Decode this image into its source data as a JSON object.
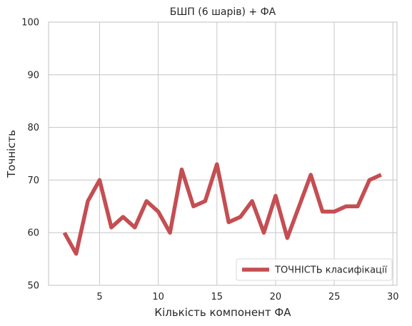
{
  "chart_data": {
    "type": "line",
    "title": "БШП (6 шарів) + ФА",
    "xlabel": "Кількість компонент ФА",
    "ylabel": "Точність",
    "xlim": [
      0.65,
      30.35
    ],
    "ylim": [
      50,
      100
    ],
    "xticks": [
      5,
      10,
      15,
      20,
      25,
      30
    ],
    "yticks": [
      50,
      60,
      70,
      80,
      90,
      100
    ],
    "grid": true,
    "legend_position": "lower-right",
    "series": [
      {
        "name": "ТОЧНІСТЬ класифікації",
        "color": "#c44e52",
        "x": [
          2,
          3,
          4,
          5,
          6,
          7,
          8,
          9,
          10,
          11,
          12,
          13,
          14,
          15,
          16,
          17,
          18,
          19,
          20,
          21,
          22,
          23,
          24,
          25,
          26,
          27,
          28,
          29
        ],
        "y": [
          60,
          56,
          66,
          70,
          61,
          63,
          61,
          66,
          64,
          60,
          72,
          65,
          66,
          73,
          62,
          63,
          66,
          60,
          67,
          59,
          65,
          71,
          64,
          64,
          65,
          65,
          70,
          71
        ]
      }
    ]
  }
}
